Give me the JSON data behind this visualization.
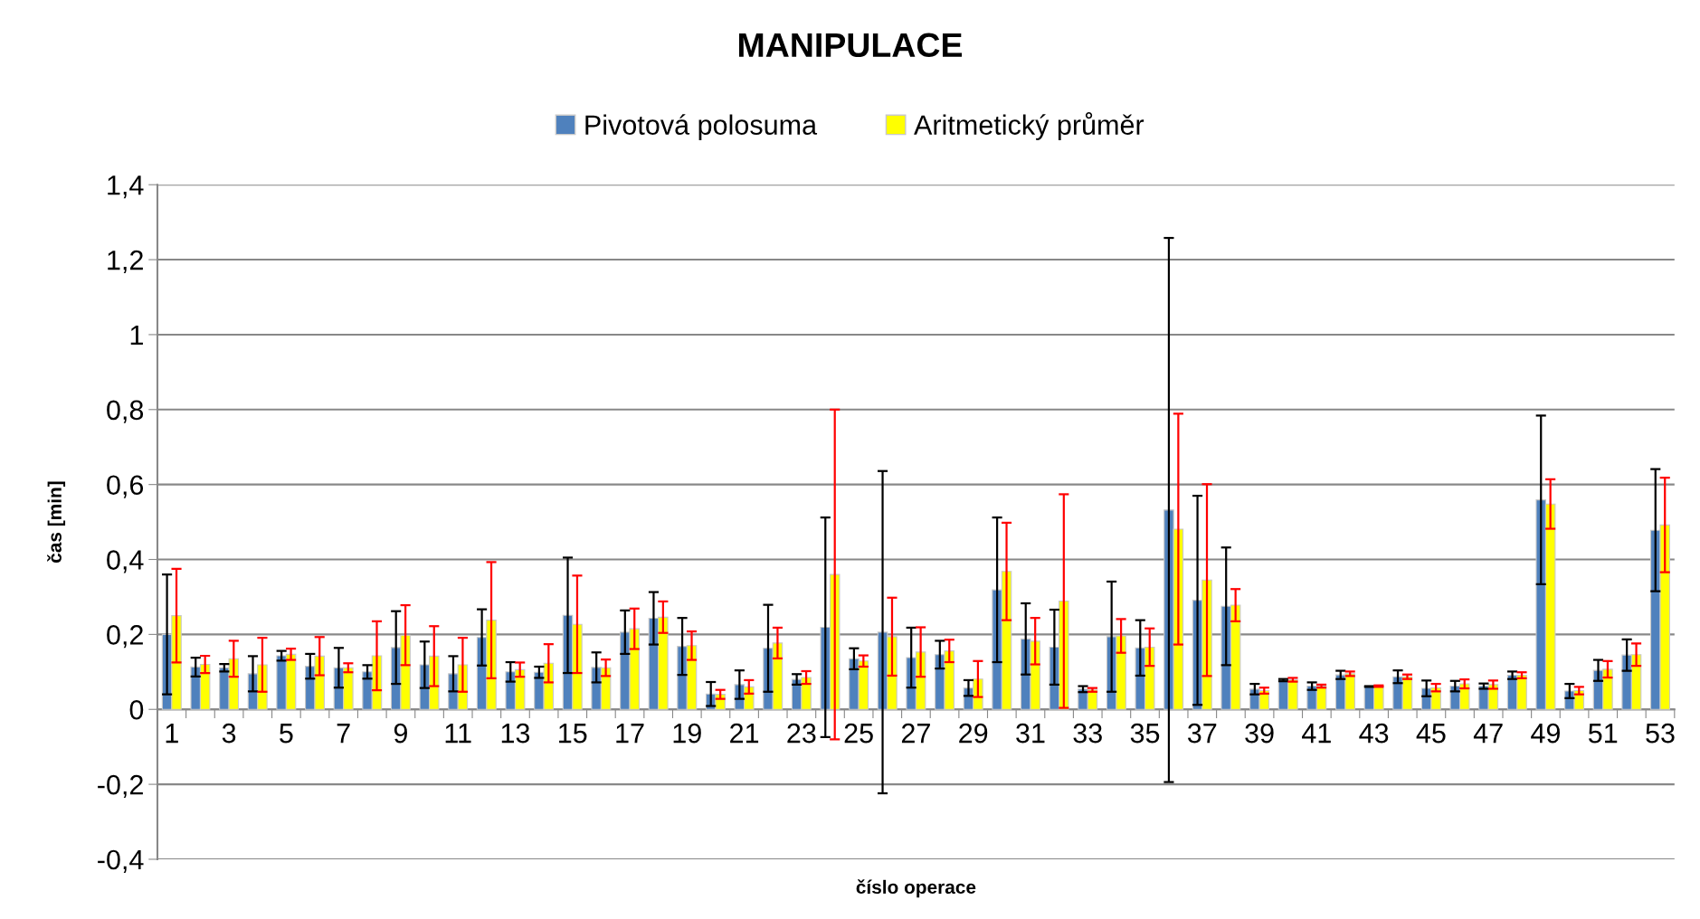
{
  "chart_data": {
    "type": "bar",
    "title": "MANIPULACE",
    "xlabel": "číslo operace",
    "ylabel": "čas [min]",
    "categories": [
      "1",
      null,
      "3",
      null,
      "5",
      null,
      "7",
      null,
      "9",
      null,
      "11",
      null,
      "13",
      null,
      "15",
      null,
      "17",
      null,
      "19",
      null,
      "21",
      null,
      "23",
      null,
      "25",
      null,
      "27",
      null,
      "29",
      null,
      "31",
      null,
      "33",
      null,
      "35",
      null,
      "37",
      null,
      "39",
      null,
      "41",
      null,
      "43",
      null,
      "45",
      null,
      "47",
      null,
      "49",
      null,
      "51",
      null,
      "53"
    ],
    "series": [
      {
        "name": "Pivotová polosuma",
        "color": "#4f81bd",
        "values": [
          0.2,
          0.113,
          0.111,
          0.095,
          0.143,
          0.115,
          0.111,
          0.1,
          0.165,
          0.119,
          0.095,
          0.192,
          0.1,
          0.099,
          0.251,
          0.112,
          0.206,
          0.243,
          0.168,
          0.041,
          0.066,
          0.163,
          0.08,
          0.219,
          0.135,
          0.206,
          0.138,
          0.146,
          0.057,
          0.319,
          0.188,
          0.166,
          0.054,
          0.194,
          0.164,
          0.532,
          0.291,
          0.275,
          0.054,
          0.078,
          0.062,
          0.092,
          0.061,
          0.087,
          0.056,
          0.062,
          0.062,
          0.091,
          0.559,
          0.049,
          0.104,
          0.145,
          0.478
        ],
        "errors": [
          0.16,
          0.025,
          0.01,
          0.047,
          0.013,
          0.033,
          0.053,
          0.018,
          0.097,
          0.062,
          0.047,
          0.075,
          0.026,
          0.015,
          0.154,
          0.04,
          0.058,
          0.07,
          0.076,
          0.032,
          0.038,
          0.116,
          0.014,
          0.293,
          0.028,
          0.43,
          0.08,
          0.037,
          0.021,
          0.193,
          0.095,
          0.1,
          0.008,
          0.147,
          0.074,
          0.726,
          0.279,
          0.157,
          0.014,
          0.003,
          0.01,
          0.011,
          0.001,
          0.017,
          0.021,
          0.014,
          0.007,
          0.01,
          0.225,
          0.019,
          0.028,
          0.042,
          0.163
        ]
      },
      {
        "name": "Aritmetický průměr",
        "color": "#ffff00",
        "values": [
          0.25,
          0.12,
          0.135,
          0.119,
          0.147,
          0.142,
          0.111,
          0.143,
          0.198,
          0.142,
          0.119,
          0.238,
          0.106,
          0.123,
          0.227,
          0.111,
          0.215,
          0.246,
          0.17,
          0.04,
          0.06,
          0.177,
          0.085,
          0.36,
          0.129,
          0.194,
          0.153,
          0.156,
          0.081,
          0.368,
          0.182,
          0.289,
          0.052,
          0.196,
          0.166,
          0.481,
          0.345,
          0.278,
          0.05,
          0.079,
          0.062,
          0.095,
          0.062,
          0.087,
          0.058,
          0.068,
          0.066,
          0.091,
          0.548,
          0.05,
          0.107,
          0.146,
          0.492
        ],
        "errors": [
          0.125,
          0.023,
          0.048,
          0.072,
          0.015,
          0.051,
          0.012,
          0.092,
          0.08,
          0.08,
          0.072,
          0.155,
          0.019,
          0.051,
          0.13,
          0.022,
          0.054,
          0.042,
          0.038,
          0.012,
          0.018,
          0.041,
          0.017,
          0.44,
          0.015,
          0.104,
          0.066,
          0.03,
          0.048,
          0.13,
          0.062,
          0.285,
          0.005,
          0.045,
          0.05,
          0.308,
          0.256,
          0.043,
          0.008,
          0.005,
          0.004,
          0.006,
          0.002,
          0.006,
          0.01,
          0.012,
          0.011,
          0.008,
          0.066,
          0.01,
          0.022,
          0.03,
          0.126
        ]
      }
    ],
    "ylim": [
      -0.4,
      1.4
    ],
    "yticks": [
      {
        "value": -0.4,
        "label": "-0,4"
      },
      {
        "value": -0.2,
        "label": "-0,2"
      },
      0,
      {
        "value": 0.2,
        "label": "0,2"
      },
      {
        "value": 0.4,
        "label": "0,4"
      },
      {
        "value": 0.6,
        "label": "0,6"
      },
      {
        "value": 0.8,
        "label": "0,8"
      },
      1,
      {
        "value": 1.2,
        "label": "1,2"
      },
      {
        "value": 1.4,
        "label": "1,4"
      }
    ],
    "grid": "y",
    "legend": "top"
  }
}
